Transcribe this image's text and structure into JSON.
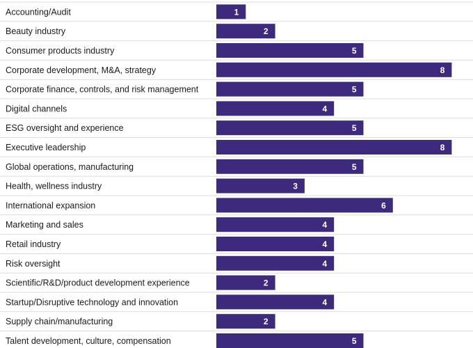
{
  "chart_data": {
    "type": "bar",
    "orientation": "horizontal",
    "title": "",
    "xlabel": "",
    "ylabel": "",
    "xlim": [
      0,
      8
    ],
    "grid": false,
    "legend": "none",
    "bar_color": "#3d2a7d",
    "label_color": "#ffffff",
    "separator_color": "#dcdcdc",
    "categories": [
      "Accounting/Audit",
      "Beauty industry",
      "Consumer products industry",
      "Corporate development, M&A, strategy",
      "Corporate finance, controls, and risk management",
      "Digital channels",
      "ESG oversight and experience",
      "Executive leadership",
      "Global operations, manufacturing",
      "Health, wellness industry",
      "International expansion",
      "Marketing and sales",
      "Retail industry",
      "Risk oversight",
      "Scientific/R&D/product development experience",
      "Startup/Disruptive technology and innovation",
      "Supply chain/manufacturing",
      "Talent development, culture, compensation"
    ],
    "values": [
      1,
      2,
      5,
      8,
      5,
      4,
      5,
      8,
      5,
      3,
      6,
      4,
      4,
      4,
      2,
      4,
      2,
      5
    ]
  }
}
